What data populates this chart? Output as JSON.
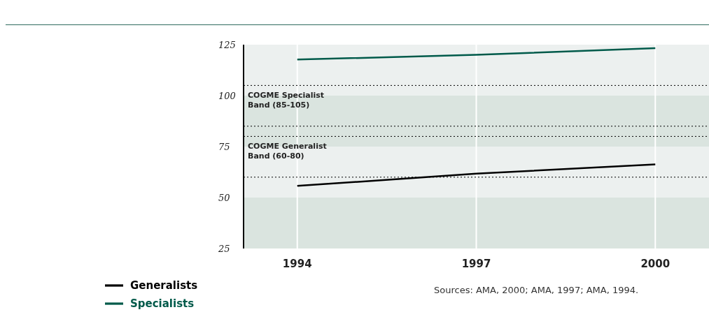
{
  "chart_data": {
    "type": "line",
    "x": [
      1994,
      1997,
      2000
    ],
    "xlim": [
      1993.1,
      2000.9
    ],
    "xticks": [
      1994,
      1997,
      2000
    ],
    "ylim": [
      25,
      125
    ],
    "yticks": [
      25,
      50,
      75,
      100,
      125
    ],
    "grid": "x",
    "legend": "bottom left",
    "series": [
      {
        "name": "Generalists",
        "color": "#000000",
        "values": [
          55.7,
          61.7,
          66.3
        ]
      },
      {
        "name": "Specialists",
        "color": "#005a4a",
        "values": [
          117.7,
          120,
          123.3
        ]
      }
    ],
    "bands": [
      {
        "axis": "y",
        "from": 25,
        "to": 50,
        "color": "#dae4df"
      },
      {
        "axis": "y",
        "from": 50,
        "to": 75,
        "color": "#ecf0ef"
      },
      {
        "axis": "y",
        "from": 75,
        "to": 100,
        "color": "#dae4df"
      },
      {
        "axis": "y",
        "from": 100,
        "to": 125,
        "color": "#ecf0ef"
      }
    ],
    "ref_lines": [
      {
        "axis": "y",
        "value": 105,
        "label": "COGME Specialist Band (85-105)",
        "line_style": "dotted"
      },
      {
        "axis": "y",
        "value": 85,
        "line_style": "dotted"
      },
      {
        "axis": "y",
        "value": 80,
        "label": "COGME Generalist Band (60-80)",
        "line_style": "dotted"
      },
      {
        "axis": "y",
        "value": 60,
        "line_style": "dotted"
      }
    ],
    "annotations": [
      "Sources: AMA, 2000; AMA, 1997; AMA, 1994."
    ]
  }
}
